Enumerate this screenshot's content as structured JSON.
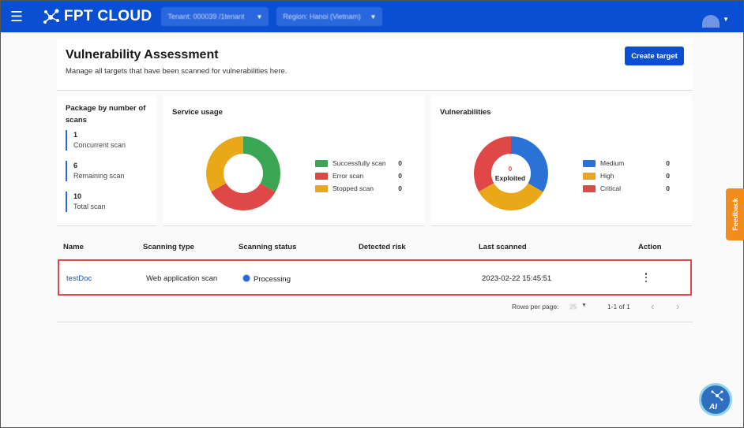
{
  "topbar": {
    "brand": "FPT CLOUD",
    "tenant_select": "Tenant: 000039 /1tenant",
    "region_select": "Region: Hanoi (Vietnam)"
  },
  "header": {
    "title": "Vulnerability Assessment",
    "subtitle": "Manage all targets that have been scanned for vulnerabilities here.",
    "create_button": "Create target"
  },
  "package": {
    "title": "Package by number of scans",
    "items": [
      {
        "value": "1",
        "label": "Concurrent scan"
      },
      {
        "value": "6",
        "label": "Remaining scan"
      },
      {
        "value": "10",
        "label": "Total scan"
      }
    ]
  },
  "service_usage": {
    "title": "Service usage",
    "legend": [
      {
        "label": "Successfully scan",
        "value": "0",
        "color": "#3aa655"
      },
      {
        "label": "Error scan",
        "value": "0",
        "color": "#e04848"
      },
      {
        "label": "Stopped scan",
        "value": "0",
        "color": "#e8a817"
      }
    ]
  },
  "vulnerabilities": {
    "title": "Vulnerabilities",
    "center_value": "0",
    "center_label": "Exploited",
    "legend": [
      {
        "label": "Medium",
        "value": "0",
        "color": "#2a72d6"
      },
      {
        "label": "High",
        "value": "0",
        "color": "#e8a817"
      },
      {
        "label": "Critical",
        "value": "0",
        "color": "#e04848"
      }
    ]
  },
  "table": {
    "columns": [
      "Name",
      "Scanning type",
      "Scanning status",
      "Detected risk",
      "Last scanned",
      "Action"
    ],
    "rows": [
      {
        "name": "testDoc",
        "type": "Web application scan",
        "status": "Processing",
        "risk": "",
        "last_scanned": "2023-02-22 15:45:51"
      }
    ],
    "rows_per_page_label": "Rows per page:",
    "rows_per_page_value": "25",
    "range": "1-1 of 1"
  },
  "feedback_label": "Feedback",
  "assistant_label": "AI"
}
